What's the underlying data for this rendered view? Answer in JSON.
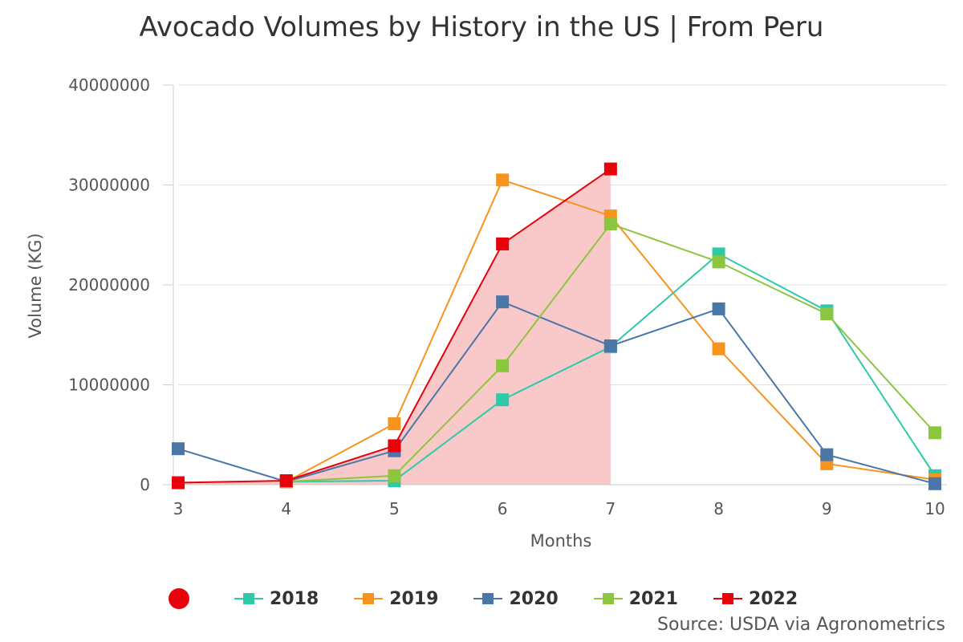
{
  "chart_data": {
    "type": "line",
    "title": "Avocado Volumes by History in the US | From Peru",
    "xlabel": "Months",
    "ylabel": "Volume (KG)",
    "categories": [
      "3",
      "4",
      "5",
      "6",
      "7",
      "8",
      "9",
      "10"
    ],
    "y_ticks": [
      "0",
      "10000000",
      "20000000",
      "30000000",
      "40000000"
    ],
    "ylim": [
      0,
      40000000
    ],
    "grid": true,
    "shaded_region": {
      "series": "2022",
      "color": "#f9c9c9"
    },
    "series": [
      {
        "name": "2018",
        "color": "#2ec9a9",
        "values": [
          null,
          300000,
          400000,
          8500000,
          13800000,
          23100000,
          17400000,
          900000
        ]
      },
      {
        "name": "2019",
        "color": "#f7941d",
        "values": [
          null,
          300000,
          6100000,
          30500000,
          26900000,
          13600000,
          2100000,
          500000
        ]
      },
      {
        "name": "2020",
        "color": "#4a76a8",
        "values": [
          3600000,
          300000,
          3400000,
          18300000,
          13900000,
          17600000,
          3000000,
          100000
        ]
      },
      {
        "name": "2021",
        "color": "#8cc63f",
        "values": [
          null,
          300000,
          900000,
          11900000,
          26100000,
          22300000,
          17100000,
          5200000
        ]
      },
      {
        "name": "2022",
        "color": "#e8000b",
        "values": [
          200000,
          400000,
          3900000,
          24100000,
          31600000,
          null,
          null,
          null
        ]
      }
    ]
  },
  "legend": {
    "marker_color": "#e8000b"
  },
  "source": "Source: USDA via Agronometrics"
}
